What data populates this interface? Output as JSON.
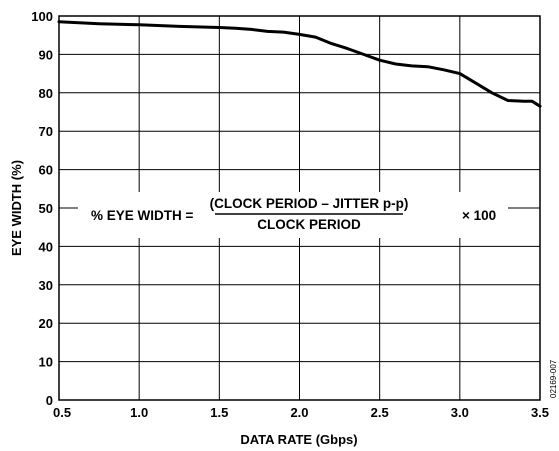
{
  "chart_data": {
    "type": "line",
    "title": "",
    "xlabel": "DATA RATE (Gbps)",
    "ylabel": "EYE WIDTH (%)",
    "xlim": [
      0.5,
      3.5
    ],
    "ylim": [
      0,
      100
    ],
    "x_ticks": [
      0.5,
      1.0,
      1.5,
      2.0,
      2.5,
      3.0,
      3.5
    ],
    "x_tick_labels": [
      "0.5",
      "1.0",
      "1.5",
      "2.0",
      "2.5",
      "3.0",
      "3.5"
    ],
    "y_ticks": [
      0,
      10,
      20,
      30,
      40,
      50,
      60,
      70,
      80,
      90,
      100
    ],
    "y_tick_labels": [
      "0",
      "10",
      "20",
      "30",
      "40",
      "50",
      "60",
      "70",
      "80",
      "90",
      "100"
    ],
    "grid": true,
    "series": [
      {
        "x": [
          0.5,
          0.75,
          1.0,
          1.25,
          1.5,
          1.6,
          1.7,
          1.8,
          1.9,
          2.0,
          2.1,
          2.2,
          2.3,
          2.4,
          2.5,
          2.6,
          2.7,
          2.8,
          2.9,
          3.0,
          3.1,
          3.2,
          3.3,
          3.4,
          3.45,
          3.5
        ],
        "y": [
          98.5,
          98.0,
          97.7,
          97.3,
          97.0,
          96.8,
          96.5,
          96.0,
          95.8,
          95.2,
          94.5,
          92.8,
          91.5,
          90.0,
          88.5,
          87.5,
          87.0,
          86.8,
          86.0,
          85.0,
          82.5,
          80.0,
          78.0,
          77.8,
          77.8,
          76.5
        ]
      }
    ],
    "annotation": {
      "lhs": "% EYE WIDTH =",
      "numerator": "(CLOCK PERIOD – JITTER p-p)",
      "denominator": "CLOCK PERIOD",
      "rhs": "× 100"
    },
    "figure_id": "02169-007"
  }
}
